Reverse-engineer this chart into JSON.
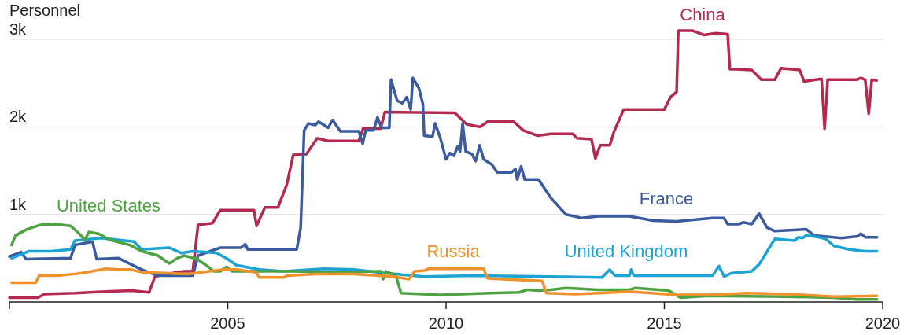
{
  "chart_data": {
    "type": "line",
    "ylabel": "Personnel",
    "xlim": [
      2000,
      2020
    ],
    "ylim": [
      0,
      3450
    ],
    "xticks": [
      {
        "value": 2000,
        "label": null
      },
      2005,
      2010,
      2015,
      2020
    ],
    "yticks": [
      {
        "value": 1000,
        "label": "1k"
      },
      {
        "value": 2000,
        "label": "2k"
      },
      {
        "value": 3000,
        "label": "3k"
      }
    ],
    "grid": "y",
    "series": [
      {
        "name": "China",
        "color": "#b5294e",
        "x": [
          2000.0,
          2000.65,
          2000.8,
          2001.5,
          2002.2,
          2002.8,
          2003.2,
          2003.33,
          2003.6,
          2004.0,
          2004.2,
          2004.32,
          2004.65,
          2004.83,
          2005.6,
          2005.66,
          2005.85,
          2006.15,
          2006.35,
          2006.5,
          2006.8,
          2007.05,
          2007.3,
          2008.0,
          2008.1,
          2008.5,
          2008.6,
          2010.2,
          2010.47,
          2010.78,
          2010.95,
          2011.55,
          2011.77,
          2012.1,
          2012.4,
          2012.9,
          2013.0,
          2013.33,
          2013.42,
          2013.53,
          2013.75,
          2013.85,
          2014.07,
          2015.0,
          2015.14,
          2015.28,
          2015.32,
          2015.64,
          2015.91,
          2016.18,
          2016.45,
          2016.5,
          2016.64,
          2017.0,
          2017.22,
          2017.53,
          2017.67,
          2018.1,
          2018.2,
          2018.6,
          2018.67,
          2018.74,
          2019.4,
          2019.5,
          2019.6,
          2019.68,
          2019.75,
          2019.86
        ],
        "values": [
          50,
          50,
          90,
          100,
          120,
          130,
          110,
          290,
          320,
          350,
          350,
          880,
          900,
          1050,
          1050,
          870,
          1080,
          1080,
          1340,
          1680,
          1690,
          1870,
          1840,
          1840,
          1980,
          1980,
          2170,
          2160,
          2030,
          2000,
          2060,
          2060,
          1960,
          1900,
          1920,
          1920,
          1870,
          1860,
          1640,
          1790,
          1790,
          1950,
          2200,
          2200,
          2340,
          2400,
          3100,
          3100,
          3050,
          3070,
          3060,
          2660,
          2660,
          2650,
          2540,
          2540,
          2670,
          2650,
          2520,
          2550,
          1980,
          2540,
          2540,
          2560,
          2540,
          2150,
          2540,
          2530
        ]
      },
      {
        "name": "France",
        "color": "#3a5ba0",
        "x": [
          2000.0,
          2000.27,
          2000.38,
          2001.4,
          2001.5,
          2001.9,
          2002.0,
          2002.5,
          2003.03,
          2003.4,
          2004.2,
          2004.32,
          2004.83,
          2005.3,
          2005.4,
          2005.46,
          2006.58,
          2006.67,
          2006.75,
          2006.85,
          2007.0,
          2007.08,
          2007.3,
          2007.4,
          2007.58,
          2008.0,
          2008.09,
          2008.16,
          2008.34,
          2008.43,
          2008.52,
          2008.7,
          2008.74,
          2008.88,
          2009.0,
          2009.1,
          2009.19,
          2009.24,
          2009.38,
          2009.47,
          2009.5,
          2009.69,
          2009.75,
          2009.87,
          2010.0,
          2010.09,
          2010.18,
          2010.27,
          2010.32,
          2010.38,
          2010.45,
          2010.59,
          2010.68,
          2010.77,
          2010.86,
          2011.05,
          2011.17,
          2011.5,
          2011.59,
          2011.63,
          2011.72,
          2011.8,
          2012.12,
          2012.25,
          2012.4,
          2012.58,
          2012.75,
          2013.1,
          2013.5,
          2013.66,
          2014.2,
          2014.74,
          2015.28,
          2016.1,
          2016.36,
          2016.45,
          2016.72,
          2016.81,
          2017.0,
          2017.17,
          2017.35,
          2017.53,
          2018.25,
          2018.43,
          2019.06,
          2019.42,
          2019.5,
          2019.6,
          2019.87
        ],
        "values": [
          520,
          570,
          490,
          500,
          650,
          690,
          490,
          500,
          370,
          300,
          300,
          530,
          620,
          620,
          660,
          600,
          600,
          850,
          1960,
          2040,
          2020,
          2060,
          1990,
          2080,
          1950,
          1950,
          1810,
          1960,
          1960,
          2110,
          1990,
          1990,
          2540,
          2300,
          2270,
          2340,
          2200,
          2560,
          2440,
          2260,
          1900,
          1890,
          2040,
          1870,
          1630,
          1700,
          1670,
          1780,
          1720,
          2040,
          1720,
          1690,
          1610,
          1790,
          1630,
          1570,
          1480,
          1480,
          1520,
          1400,
          1550,
          1400,
          1400,
          1300,
          1190,
          1090,
          1000,
          960,
          980,
          980,
          980,
          930,
          920,
          960,
          960,
          890,
          890,
          910,
          890,
          1010,
          850,
          810,
          830,
          760,
          730,
          750,
          780,
          740,
          740
        ]
      },
      {
        "name": "United Kingdom",
        "color": "#1ba3d6",
        "x": [
          2000.05,
          2000.45,
          2000.95,
          2001.4,
          2001.5,
          2002.1,
          2002.85,
          2003.03,
          2003.66,
          2003.93,
          2004.2,
          2004.75,
          2005.0,
          2005.2,
          2005.73,
          2006.27,
          2007.2,
          2007.9,
          2008.6,
          2009.5,
          2010.6,
          2012.4,
          2013.57,
          2013.75,
          2013.87,
          2014.2,
          2014.24,
          2014.3,
          2016.1,
          2016.25,
          2016.37,
          2016.54,
          2017.0,
          2017.17,
          2017.53,
          2017.98,
          2018.07,
          2018.16,
          2018.25,
          2018.52,
          2018.7,
          2018.88,
          2019.24,
          2019.6,
          2019.87
        ],
        "values": [
          500,
          580,
          580,
          600,
          700,
          730,
          690,
          600,
          620,
          560,
          580,
          560,
          490,
          420,
          370,
          350,
          380,
          370,
          330,
          290,
          300,
          290,
          280,
          370,
          300,
          300,
          370,
          300,
          300,
          410,
          290,
          330,
          350,
          430,
          720,
          700,
          740,
          730,
          760,
          740,
          720,
          640,
          600,
          580,
          580
        ]
      },
      {
        "name": "United States",
        "color": "#4ca340",
        "x": [
          2000.05,
          2000.14,
          2000.4,
          2000.7,
          2001.05,
          2001.4,
          2001.6,
          2001.73,
          2001.82,
          2002.04,
          2002.3,
          2002.76,
          2003.03,
          2003.4,
          2003.66,
          2003.84,
          2004.0,
          2004.3,
          2004.56,
          2004.68,
          2004.83,
          2004.97,
          2005.1,
          2006.5,
          2007.5,
          2008.5,
          2008.56,
          2008.62,
          2008.85,
          2008.97,
          2009.87,
          2011.0,
          2011.68,
          2011.86,
          2012.12,
          2012.4,
          2012.75,
          2013.48,
          2014.2,
          2014.34,
          2015.1,
          2015.37,
          2016.0,
          2017.8,
          2018.88,
          2019.4,
          2019.87
        ],
        "values": [
          650,
          760,
          830,
          880,
          890,
          870,
          780,
          710,
          800,
          780,
          710,
          650,
          580,
          530,
          440,
          500,
          530,
          490,
          400,
          350,
          350,
          400,
          350,
          350,
          340,
          350,
          260,
          350,
          300,
          100,
          80,
          100,
          110,
          140,
          130,
          140,
          160,
          140,
          140,
          160,
          130,
          50,
          70,
          60,
          50,
          30,
          30
        ]
      },
      {
        "name": "Russia",
        "color": "#f0922c",
        "x": [
          2000.05,
          2000.6,
          2000.68,
          2001.1,
          2001.5,
          2001.77,
          2002.2,
          2002.5,
          2002.77,
          2003.03,
          2004.1,
          2004.9,
          2005.2,
          2005.64,
          2005.73,
          2006.27,
          2006.36,
          2007.0,
          2007.9,
          2008.8,
          2009.15,
          2009.28,
          2009.51,
          2009.6,
          2010.86,
          2010.95,
          2011.3,
          2012.2,
          2012.3,
          2012.95,
          2013.5,
          2014.2,
          2015.28,
          2016.0,
          2016.9,
          2017.8,
          2018.9,
          2019.87
        ],
        "values": [
          220,
          220,
          300,
          300,
          320,
          340,
          380,
          370,
          370,
          340,
          320,
          370,
          370,
          340,
          280,
          280,
          300,
          320,
          320,
          290,
          260,
          350,
          360,
          380,
          380,
          270,
          260,
          240,
          100,
          90,
          100,
          120,
          80,
          80,
          100,
          90,
          60,
          70
        ]
      }
    ]
  }
}
